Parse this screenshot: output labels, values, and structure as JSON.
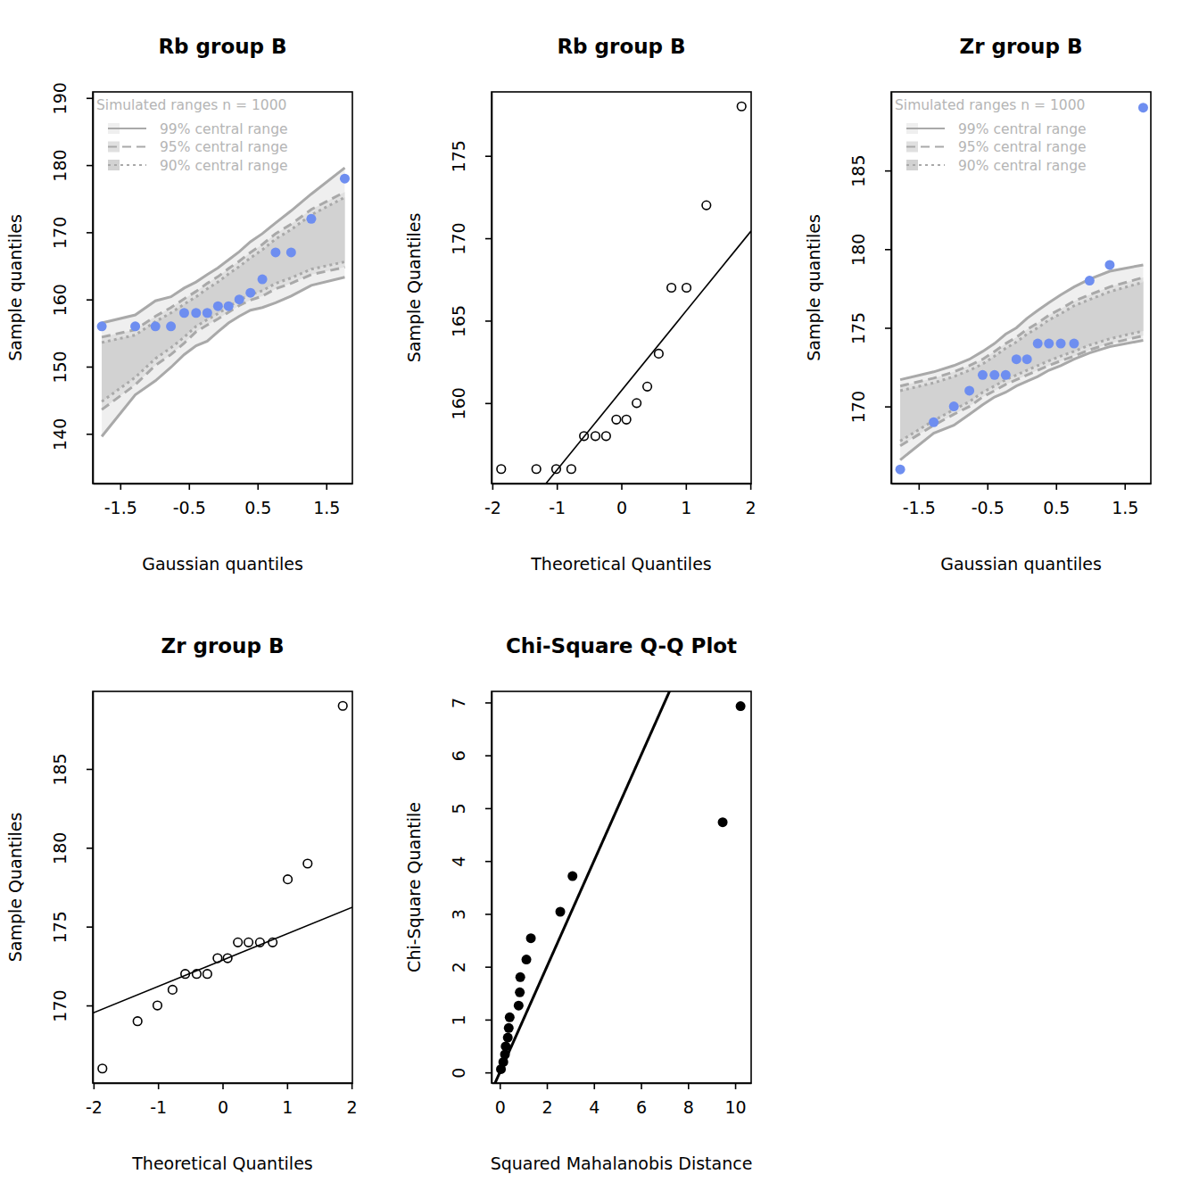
{
  "chart_data": [
    {
      "type": "qq_envelope",
      "title": "Rb group B",
      "x_label": "Gaussian quantiles",
      "y_label": "Sample quantiles",
      "x": [
        -1.769,
        -1.2816,
        -0.988,
        -0.762,
        -0.569,
        -0.396,
        -0.233,
        -0.077,
        0.077,
        0.233,
        0.396,
        0.569,
        0.762,
        0.988,
        1.2816,
        1.769
      ],
      "values": [
        156,
        156,
        156,
        156,
        158,
        158,
        158,
        159,
        159,
        160,
        161,
        163,
        167,
        167,
        172,
        178
      ],
      "color": "#6e8ef0",
      "marker": "filled-circle",
      "xlim": [
        -1.9,
        1.88
      ],
      "xticks": [
        -1.5,
        -0.5,
        0.5,
        1.5
      ],
      "ylim": [
        132.6,
        190.9
      ],
      "yticks": [
        140,
        150,
        160,
        170,
        180,
        190
      ],
      "legend": "top-left",
      "legend_title": "Simulated ranges n = 1000",
      "envelopes": [
        {
          "name": "99% central range",
          "line_style": "solid",
          "lower": [
            139.6,
            145.8,
            147.9,
            149.9,
            151.8,
            153.1,
            153.8,
            155.2,
            156.5,
            157.5,
            158.4,
            158.8,
            159.5,
            160.5,
            162.1,
            163.3
          ],
          "upper": [
            156.5,
            157.7,
            159.8,
            160.4,
            161.7,
            162.6,
            163.7,
            164.7,
            165.9,
            167.1,
            168.6,
            169.8,
            171.4,
            173.2,
            175.7,
            179.6
          ]
        },
        {
          "name": "95% central range",
          "line_style": "dashed",
          "lower": [
            143.6,
            147.3,
            150.2,
            151.8,
            153.5,
            155.2,
            156.2,
            157.1,
            158.1,
            159.1,
            159.9,
            160.5,
            161.6,
            162.4,
            163.7,
            164.8
          ],
          "upper": [
            154.4,
            155.5,
            157.5,
            158.8,
            160.1,
            161.2,
            162.4,
            163.4,
            164.6,
            165.7,
            167.0,
            168.2,
            169.8,
            171.2,
            173.4,
            176.0
          ]
        },
        {
          "name": "90% central range",
          "line_style": "dotted",
          "lower": [
            144.8,
            148.4,
            151.2,
            152.8,
            154.4,
            156.0,
            157.0,
            157.9,
            158.9,
            159.9,
            160.7,
            161.3,
            162.4,
            163.2,
            164.5,
            165.6
          ],
          "upper": [
            153.6,
            154.7,
            156.7,
            158.0,
            159.3,
            160.4,
            161.6,
            162.6,
            163.8,
            164.9,
            166.2,
            167.4,
            169.0,
            170.4,
            172.6,
            175.2
          ]
        }
      ]
    },
    {
      "type": "qq",
      "title": "Rb group B",
      "x_label": "Theoretical Quantiles",
      "y_label": "Sample Quantiles",
      "x": [
        -1.863,
        -1.318,
        -1.01,
        -0.776,
        -0.579,
        -0.402,
        -0.237,
        -0.078,
        0.078,
        0.237,
        0.402,
        0.579,
        0.776,
        1.01,
        1.318,
        1.863
      ],
      "values": [
        156,
        156,
        156,
        156,
        158,
        158,
        158,
        159,
        159,
        160,
        161,
        163,
        167,
        167,
        172,
        178
      ],
      "color": "#000000",
      "marker": "open-circle",
      "xlim": [
        -2.012,
        2.012
      ],
      "xticks": [
        -2,
        -1,
        0,
        1,
        2
      ],
      "ylim": [
        155.12,
        178.88
      ],
      "yticks": [
        160,
        165,
        170,
        175
      ],
      "qq_line": {
        "intercept": 160.75,
        "slope": 4.818
      }
    },
    {
      "type": "qq_envelope",
      "title": "Zr group B",
      "x_label": "Gaussian quantiles",
      "y_label": "Sample quantiles",
      "x": [
        -1.769,
        -1.2816,
        -0.988,
        -0.762,
        -0.569,
        -0.396,
        -0.233,
        -0.077,
        0.077,
        0.233,
        0.396,
        0.569,
        0.762,
        0.988,
        1.2816,
        1.769
      ],
      "values": [
        166,
        169,
        170,
        171,
        172,
        172,
        172,
        173,
        173,
        174,
        174,
        174,
        174,
        178,
        179,
        189
      ],
      "color": "#6e8ef0",
      "marker": "filled-circle",
      "xlim": [
        -1.9,
        1.88
      ],
      "xticks": [
        -1.5,
        -0.5,
        0.5,
        1.5
      ],
      "ylim": [
        165.1,
        190.0
      ],
      "yticks": [
        170,
        175,
        180,
        185
      ],
      "legend": "top-left",
      "legend_title": "Simulated ranges n = 1000",
      "envelopes": [
        {
          "name": "99% central range",
          "line_style": "solid",
          "lower": [
            166.6,
            168.3,
            168.8,
            169.5,
            170.1,
            170.6,
            170.9,
            171.3,
            171.6,
            171.9,
            172.3,
            172.6,
            173.0,
            173.4,
            173.8,
            174.2
          ],
          "upper": [
            171.7,
            172.2,
            172.6,
            173.0,
            173.5,
            174.0,
            174.6,
            175.0,
            175.6,
            176.1,
            176.6,
            177.1,
            177.6,
            178.1,
            178.6,
            179.0
          ]
        },
        {
          "name": "95% central range",
          "line_style": "dashed",
          "lower": [
            167.5,
            168.8,
            169.5,
            170.0,
            170.6,
            171.0,
            171.4,
            171.7,
            172.0,
            172.3,
            172.6,
            172.9,
            173.2,
            173.6,
            174.0,
            174.5
          ],
          "upper": [
            171.3,
            171.8,
            172.2,
            172.6,
            173.0,
            173.5,
            174.0,
            174.4,
            174.9,
            175.3,
            175.8,
            176.2,
            176.7,
            177.1,
            177.6,
            178.2
          ]
        },
        {
          "name": "90% central range",
          "line_style": "dotted",
          "lower": [
            167.8,
            169.1,
            169.8,
            170.3,
            170.9,
            171.3,
            171.7,
            172.0,
            172.3,
            172.6,
            172.9,
            173.2,
            173.5,
            173.9,
            174.3,
            174.8
          ],
          "upper": [
            171.0,
            171.5,
            171.9,
            172.3,
            172.7,
            173.2,
            173.7,
            174.1,
            174.6,
            175.0,
            175.5,
            175.9,
            176.4,
            176.8,
            177.3,
            177.9
          ]
        }
      ]
    },
    {
      "type": "qq",
      "title": "Zr group B",
      "x_label": "Theoretical Quantiles",
      "y_label": "Sample Quantiles",
      "x": [
        -1.863,
        -1.318,
        -1.01,
        -0.776,
        -0.579,
        -0.402,
        -0.237,
        -0.078,
        0.078,
        0.237,
        0.402,
        0.579,
        0.776,
        1.01,
        1.318,
        1.863
      ],
      "values": [
        166,
        169,
        170,
        171,
        172,
        172,
        172,
        173,
        173,
        174,
        174,
        174,
        174,
        178,
        179,
        189
      ],
      "color": "#000000",
      "marker": "open-circle",
      "xlim": [
        -2.012,
        2.012
      ],
      "xticks": [
        -2,
        -1,
        0,
        1,
        2
      ],
      "ylim": [
        165.08,
        189.92
      ],
      "yticks": [
        170,
        175,
        180,
        185
      ],
      "qq_line": {
        "intercept": 172.875,
        "slope": 1.668
      }
    },
    {
      "type": "scatter",
      "title": "Chi-Square Q-Q Plot",
      "x_label": "Squared Mahalanobis Distance",
      "y_label": "Chi-Square Quantile",
      "x": [
        0.05,
        0.15,
        0.22,
        0.25,
        0.34,
        0.38,
        0.42,
        0.8,
        0.85,
        0.87,
        1.13,
        1.32,
        2.57,
        3.09,
        9.47,
        10.23
      ],
      "values": [
        0.0635,
        0.197,
        0.34,
        0.494,
        0.66,
        0.842,
        1.043,
        1.265,
        1.516,
        1.803,
        2.136,
        2.539,
        3.041,
        3.714,
        4.734,
        6.931
      ],
      "color": "#000000",
      "marker": "filled-circle",
      "xlim": [
        -0.35,
        10.68
      ],
      "xticks": [
        0,
        2,
        4,
        6,
        8,
        10
      ],
      "ylim": [
        -0.2,
        7.21
      ],
      "yticks": [
        0,
        1,
        2,
        3,
        4,
        5,
        6,
        7
      ],
      "qq_line": {
        "intercept": 0,
        "slope": 1
      }
    }
  ]
}
